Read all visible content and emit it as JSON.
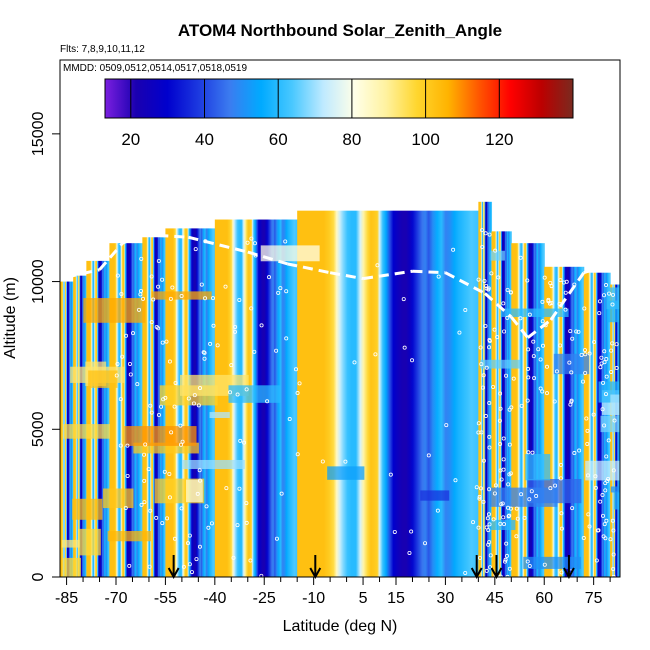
{
  "chart_data": {
    "type": "heatmap",
    "title": "ATOM4 Northbound Solar_Zenith_Angle",
    "subtitle_flights": "Flts: 7,8,9,10,11,12",
    "subtitle_dates": "MMDD: 0509,0512,0514,0517,0518,0519",
    "xlabel": "Latitude (deg N)",
    "ylabel": "Altitude (m)",
    "xlim": [
      -87,
      83
    ],
    "ylim": [
      0,
      17500
    ],
    "x_ticks": [
      -85,
      -70,
      -55,
      -40,
      -25,
      -10,
      5,
      15,
      30,
      45,
      60,
      75
    ],
    "y_ticks": [
      0,
      5000,
      10000,
      15000
    ],
    "colorbar": {
      "min": 13,
      "max": 140,
      "ticks": [
        20,
        40,
        60,
        80,
        100,
        120
      ],
      "palette": [
        "#7b1fe0",
        "#1a00b0",
        "#0000cd",
        "#1c39e0",
        "#3b7cf0",
        "#00aaff",
        "#49c8ff",
        "#bfeaff",
        "#ffffe8",
        "#fff2a0",
        "#ffd62e",
        "#ffb300",
        "#ff5500",
        "#ff0000",
        "#bb0000",
        "#7a2a1f"
      ]
    },
    "sza_profile": {
      "latitude": [
        -87,
        -70,
        -62,
        -57,
        -53,
        -50,
        -47,
        -44,
        -40,
        -36,
        -32,
        -28,
        -25,
        -21,
        -18,
        -15,
        -12,
        -10,
        -7,
        -4,
        0,
        3,
        6,
        9,
        12,
        15,
        18,
        21,
        24,
        27,
        30,
        33,
        36,
        40,
        44,
        48,
        52,
        56,
        60,
        64,
        68,
        72,
        76,
        80,
        83
      ],
      "sza_deg": [
        103,
        103,
        103,
        100,
        96,
        85,
        74,
        68,
        62,
        60,
        60,
        75,
        88,
        97,
        102,
        101,
        99,
        76,
        62,
        55,
        40,
        30,
        27,
        24,
        22,
        22,
        26,
        31,
        36,
        41,
        46,
        48,
        42,
        50,
        56,
        60,
        48,
        50,
        55,
        58,
        60,
        62,
        64,
        63,
        62
      ]
    },
    "flight_coverage": [
      {
        "lat": [
          -87,
          -83
        ],
        "alt": [
          0,
          10000
        ]
      },
      {
        "lat": [
          -83,
          -79
        ],
        "alt": [
          0,
          10200
        ]
      },
      {
        "lat": [
          -79,
          -72
        ],
        "alt": [
          0,
          10700
        ]
      },
      {
        "lat": [
          -72,
          -62
        ],
        "alt": [
          0,
          11300
        ]
      },
      {
        "lat": [
          -62,
          -55
        ],
        "alt": [
          0,
          11500
        ]
      },
      {
        "lat": [
          -55,
          -40
        ],
        "alt": [
          0,
          11800
        ]
      },
      {
        "lat": [
          -40,
          -15
        ],
        "alt": [
          0,
          12100
        ]
      },
      {
        "lat": [
          -15,
          40
        ],
        "alt": [
          0,
          12400
        ]
      },
      {
        "lat": [
          40,
          44
        ],
        "alt": [
          0,
          12700
        ]
      },
      {
        "lat": [
          44,
          50
        ],
        "alt": [
          0,
          11700
        ]
      },
      {
        "lat": [
          50,
          60
        ],
        "alt": [
          0,
          11300
        ]
      },
      {
        "lat": [
          60,
          72
        ],
        "alt": [
          0,
          10500
        ]
      },
      {
        "lat": [
          72,
          80
        ],
        "alt": [
          0,
          10300
        ]
      },
      {
        "lat": [
          80,
          83
        ],
        "alt": [
          0,
          9900
        ]
      }
    ],
    "markers_lat": [
      -52.5,
      -9.5,
      39.5,
      45.5,
      67.5
    ],
    "grid": false,
    "legend": "colorbar top"
  }
}
